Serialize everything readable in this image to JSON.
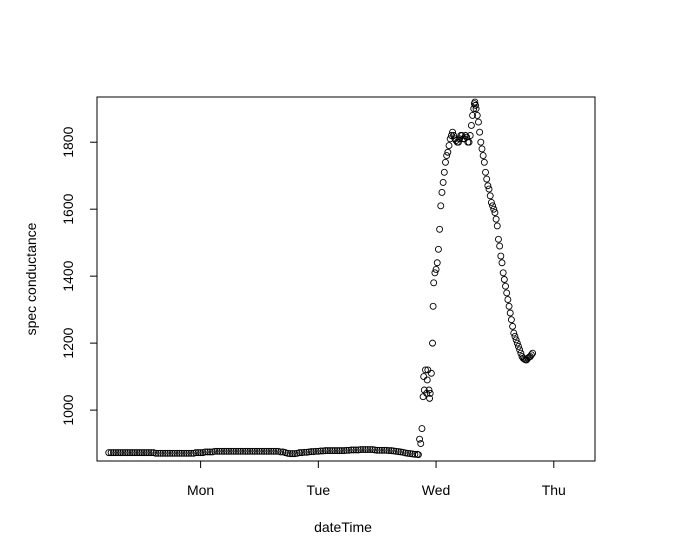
{
  "chart_data": {
    "type": "scatter",
    "title": "",
    "xlabel": "dateTime",
    "ylabel": "spec conductance",
    "x_unit": "day",
    "xlim": [
      -0.88,
      3.35
    ],
    "ylim": [
      848,
      1935
    ],
    "x_ticks": [
      {
        "label": "Mon",
        "value": 0
      },
      {
        "label": "Tue",
        "value": 1
      },
      {
        "label": "Wed",
        "value": 2
      },
      {
        "label": "Thu",
        "value": 3
      }
    ],
    "y_ticks": [
      1000,
      1200,
      1400,
      1600,
      1800
    ],
    "grid": false,
    "legend": "none",
    "marker": "open-circle",
    "marker_color": "#000000",
    "points": [
      [
        -0.78,
        873
      ],
      [
        -0.76,
        873
      ],
      [
        -0.74,
        873
      ],
      [
        -0.72,
        873
      ],
      [
        -0.7,
        873
      ],
      [
        -0.68,
        873
      ],
      [
        -0.66,
        873
      ],
      [
        -0.64,
        873
      ],
      [
        -0.62,
        873
      ],
      [
        -0.6,
        873
      ],
      [
        -0.58,
        873
      ],
      [
        -0.56,
        873
      ],
      [
        -0.54,
        873
      ],
      [
        -0.52,
        873
      ],
      [
        -0.5,
        873
      ],
      [
        -0.48,
        873
      ],
      [
        -0.46,
        873
      ],
      [
        -0.44,
        873
      ],
      [
        -0.42,
        873
      ],
      [
        -0.4,
        873
      ],
      [
        -0.38,
        871
      ],
      [
        -0.36,
        871
      ],
      [
        -0.34,
        871
      ],
      [
        -0.32,
        871
      ],
      [
        -0.3,
        871
      ],
      [
        -0.28,
        871
      ],
      [
        -0.26,
        871
      ],
      [
        -0.24,
        871
      ],
      [
        -0.22,
        871
      ],
      [
        -0.2,
        871
      ],
      [
        -0.18,
        871
      ],
      [
        -0.16,
        871
      ],
      [
        -0.14,
        871
      ],
      [
        -0.12,
        871
      ],
      [
        -0.1,
        871
      ],
      [
        -0.08,
        871
      ],
      [
        -0.06,
        871
      ],
      [
        -0.04,
        873
      ],
      [
        -0.02,
        873
      ],
      [
        0.0,
        873
      ],
      [
        0.02,
        873
      ],
      [
        0.04,
        875
      ],
      [
        0.06,
        875
      ],
      [
        0.08,
        875
      ],
      [
        0.1,
        875
      ],
      [
        0.12,
        877
      ],
      [
        0.14,
        877
      ],
      [
        0.16,
        877
      ],
      [
        0.18,
        877
      ],
      [
        0.2,
        877
      ],
      [
        0.22,
        877
      ],
      [
        0.24,
        877
      ],
      [
        0.26,
        877
      ],
      [
        0.28,
        877
      ],
      [
        0.3,
        877
      ],
      [
        0.32,
        877
      ],
      [
        0.34,
        877
      ],
      [
        0.36,
        877
      ],
      [
        0.38,
        877
      ],
      [
        0.4,
        877
      ],
      [
        0.42,
        877
      ],
      [
        0.44,
        877
      ],
      [
        0.46,
        877
      ],
      [
        0.48,
        877
      ],
      [
        0.5,
        877
      ],
      [
        0.52,
        877
      ],
      [
        0.54,
        877
      ],
      [
        0.56,
        877
      ],
      [
        0.58,
        877
      ],
      [
        0.6,
        877
      ],
      [
        0.62,
        877
      ],
      [
        0.64,
        877
      ],
      [
        0.66,
        877
      ],
      [
        0.68,
        875
      ],
      [
        0.7,
        875
      ],
      [
        0.72,
        873
      ],
      [
        0.74,
        871
      ],
      [
        0.76,
        870
      ],
      [
        0.78,
        870
      ],
      [
        0.8,
        870
      ],
      [
        0.82,
        871
      ],
      [
        0.84,
        873
      ],
      [
        0.86,
        873
      ],
      [
        0.88,
        874
      ],
      [
        0.9,
        874
      ],
      [
        0.92,
        875
      ],
      [
        0.94,
        876
      ],
      [
        0.96,
        876
      ],
      [
        0.98,
        877
      ],
      [
        1.0,
        877
      ],
      [
        1.02,
        878
      ],
      [
        1.04,
        878
      ],
      [
        1.06,
        879
      ],
      [
        1.08,
        879
      ],
      [
        1.1,
        879
      ],
      [
        1.12,
        879
      ],
      [
        1.14,
        879
      ],
      [
        1.16,
        879
      ],
      [
        1.18,
        879
      ],
      [
        1.2,
        879
      ],
      [
        1.22,
        879
      ],
      [
        1.24,
        880
      ],
      [
        1.26,
        880
      ],
      [
        1.28,
        881
      ],
      [
        1.3,
        881
      ],
      [
        1.32,
        881
      ],
      [
        1.34,
        881
      ],
      [
        1.36,
        882
      ],
      [
        1.38,
        882
      ],
      [
        1.4,
        882
      ],
      [
        1.42,
        882
      ],
      [
        1.44,
        882
      ],
      [
        1.46,
        882
      ],
      [
        1.48,
        881
      ],
      [
        1.5,
        880
      ],
      [
        1.52,
        880
      ],
      [
        1.54,
        880
      ],
      [
        1.56,
        880
      ],
      [
        1.58,
        880
      ],
      [
        1.6,
        879
      ],
      [
        1.62,
        879
      ],
      [
        1.64,
        878
      ],
      [
        1.66,
        877
      ],
      [
        1.68,
        876
      ],
      [
        1.7,
        875
      ],
      [
        1.72,
        874
      ],
      [
        1.74,
        872
      ],
      [
        1.76,
        871
      ],
      [
        1.78,
        870
      ],
      [
        1.8,
        869
      ],
      [
        1.82,
        868
      ],
      [
        1.84,
        868
      ],
      [
        1.85,
        867
      ],
      [
        1.86,
        913
      ],
      [
        1.87,
        900
      ],
      [
        1.88,
        945
      ],
      [
        1.89,
        1040
      ],
      [
        1.895,
        1100
      ],
      [
        1.9,
        1060
      ],
      [
        1.91,
        1120
      ],
      [
        1.92,
        1050
      ],
      [
        1.925,
        1090
      ],
      [
        1.93,
        1120
      ],
      [
        1.94,
        1060
      ],
      [
        1.945,
        1035
      ],
      [
        1.95,
        1050
      ],
      [
        1.96,
        1110
      ],
      [
        1.97,
        1200
      ],
      [
        1.975,
        1310
      ],
      [
        1.98,
        1380
      ],
      [
        1.99,
        1410
      ],
      [
        2.0,
        1420
      ],
      [
        2.01,
        1440
      ],
      [
        2.02,
        1480
      ],
      [
        2.03,
        1540
      ],
      [
        2.04,
        1610
      ],
      [
        2.05,
        1650
      ],
      [
        2.06,
        1680
      ],
      [
        2.07,
        1710
      ],
      [
        2.08,
        1740
      ],
      [
        2.09,
        1760
      ],
      [
        2.1,
        1770
      ],
      [
        2.11,
        1790
      ],
      [
        2.12,
        1810
      ],
      [
        2.13,
        1820
      ],
      [
        2.14,
        1830
      ],
      [
        2.15,
        1820
      ],
      [
        2.16,
        1810
      ],
      [
        2.17,
        1805
      ],
      [
        2.18,
        1800
      ],
      [
        2.19,
        1800
      ],
      [
        2.2,
        1810
      ],
      [
        2.21,
        1820
      ],
      [
        2.22,
        1820
      ],
      [
        2.23,
        1810
      ],
      [
        2.24,
        1810
      ],
      [
        2.25,
        1820
      ],
      [
        2.26,
        1815
      ],
      [
        2.27,
        1800
      ],
      [
        2.28,
        1800
      ],
      [
        2.29,
        1820
      ],
      [
        2.3,
        1850
      ],
      [
        2.31,
        1880
      ],
      [
        2.32,
        1900
      ],
      [
        2.325,
        1915
      ],
      [
        2.33,
        1920
      ],
      [
        2.335,
        1910
      ],
      [
        2.34,
        1900
      ],
      [
        2.35,
        1880
      ],
      [
        2.36,
        1860
      ],
      [
        2.37,
        1830
      ],
      [
        2.38,
        1800
      ],
      [
        2.39,
        1780
      ],
      [
        2.4,
        1760
      ],
      [
        2.41,
        1740
      ],
      [
        2.42,
        1710
      ],
      [
        2.43,
        1690
      ],
      [
        2.44,
        1670
      ],
      [
        2.45,
        1660
      ],
      [
        2.46,
        1640
      ],
      [
        2.47,
        1620
      ],
      [
        2.48,
        1610
      ],
      [
        2.49,
        1600
      ],
      [
        2.5,
        1590
      ],
      [
        2.51,
        1570
      ],
      [
        2.52,
        1550
      ],
      [
        2.53,
        1510
      ],
      [
        2.54,
        1490
      ],
      [
        2.55,
        1460
      ],
      [
        2.56,
        1440
      ],
      [
        2.57,
        1410
      ],
      [
        2.58,
        1390
      ],
      [
        2.59,
        1370
      ],
      [
        2.6,
        1350
      ],
      [
        2.61,
        1330
      ],
      [
        2.62,
        1310
      ],
      [
        2.63,
        1290
      ],
      [
        2.64,
        1270
      ],
      [
        2.65,
        1250
      ],
      [
        2.66,
        1230
      ],
      [
        2.67,
        1220
      ],
      [
        2.68,
        1210
      ],
      [
        2.69,
        1200
      ],
      [
        2.7,
        1190
      ],
      [
        2.71,
        1180
      ],
      [
        2.72,
        1170
      ],
      [
        2.73,
        1160
      ],
      [
        2.74,
        1155
      ],
      [
        2.75,
        1152
      ],
      [
        2.76,
        1150
      ],
      [
        2.77,
        1150
      ],
      [
        2.78,
        1155
      ],
      [
        2.79,
        1158
      ],
      [
        2.8,
        1160
      ],
      [
        2.81,
        1165
      ],
      [
        2.82,
        1170
      ]
    ]
  }
}
